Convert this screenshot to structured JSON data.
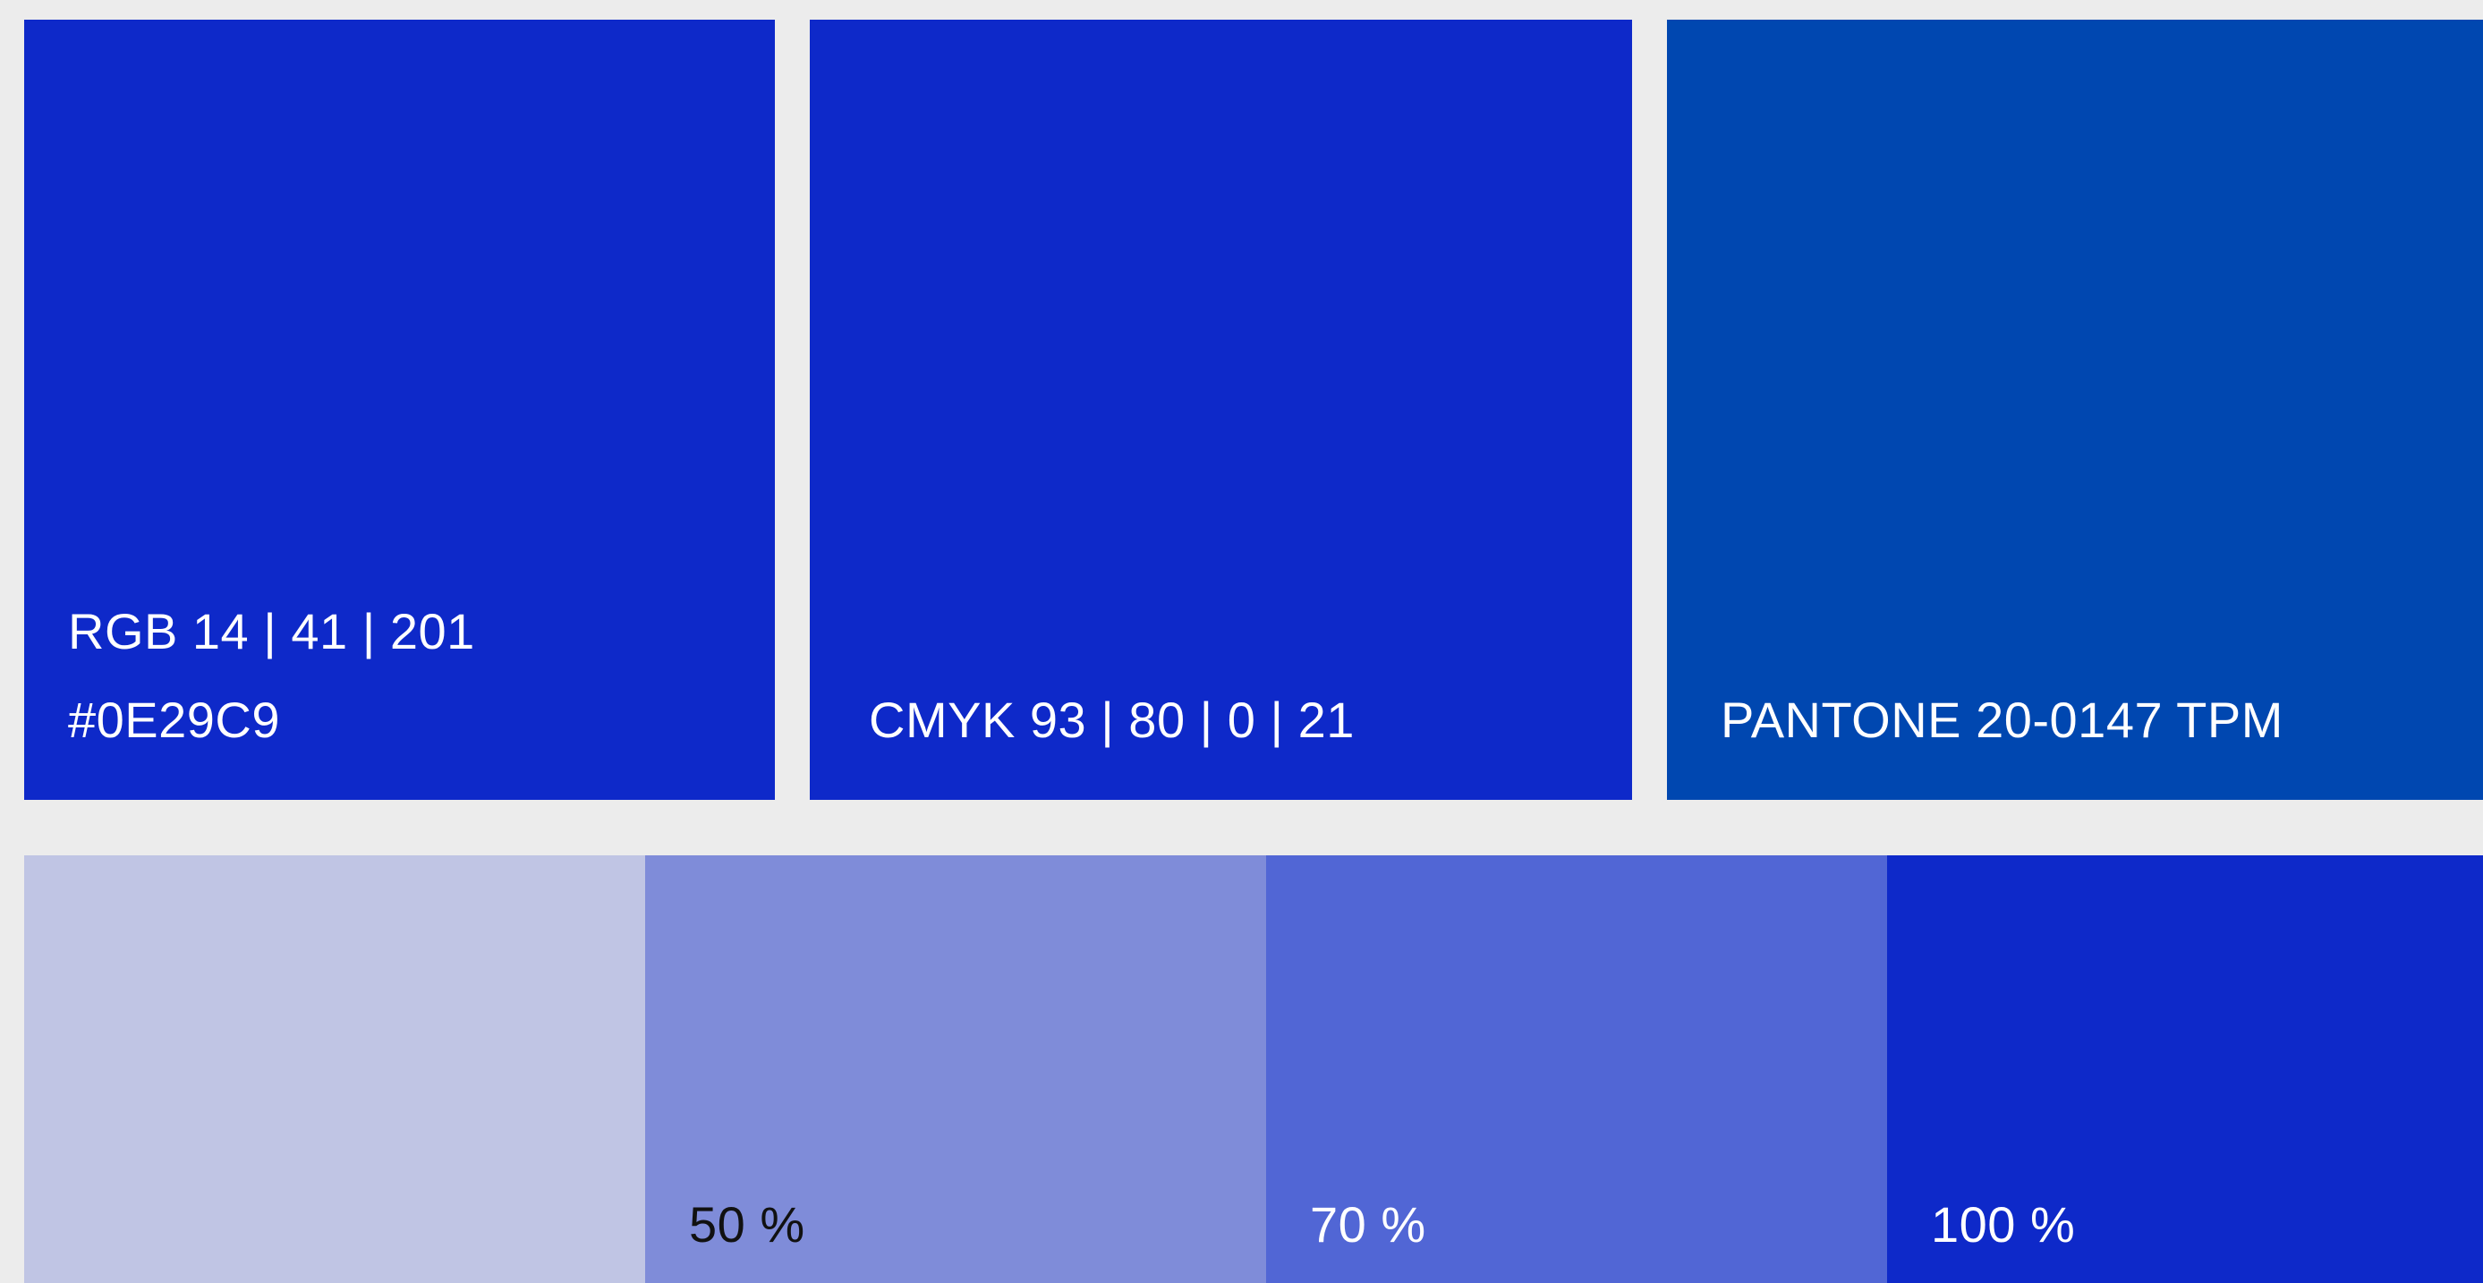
{
  "colors": {
    "primary": "#0E29C9",
    "pantone_swatch": "#0047B0",
    "background": "#ECECEC",
    "tint_30": "#C0C5E4",
    "tint_50": "#7F8CD9",
    "tint_70": "#5166D5",
    "tint_100": "#0E29C9"
  },
  "swatches": {
    "rgb_label": "RGB 14 | 41 | 201",
    "hex_label": "#0E29C9",
    "cmyk_label": "CMYK 93 | 80 | 0 | 21",
    "pantone_label": "PANTONE 20-0147 TPM"
  },
  "tints": [
    {
      "label": ""
    },
    {
      "label": "50 %"
    },
    {
      "label": "70 %"
    },
    {
      "label": "100 %"
    }
  ]
}
